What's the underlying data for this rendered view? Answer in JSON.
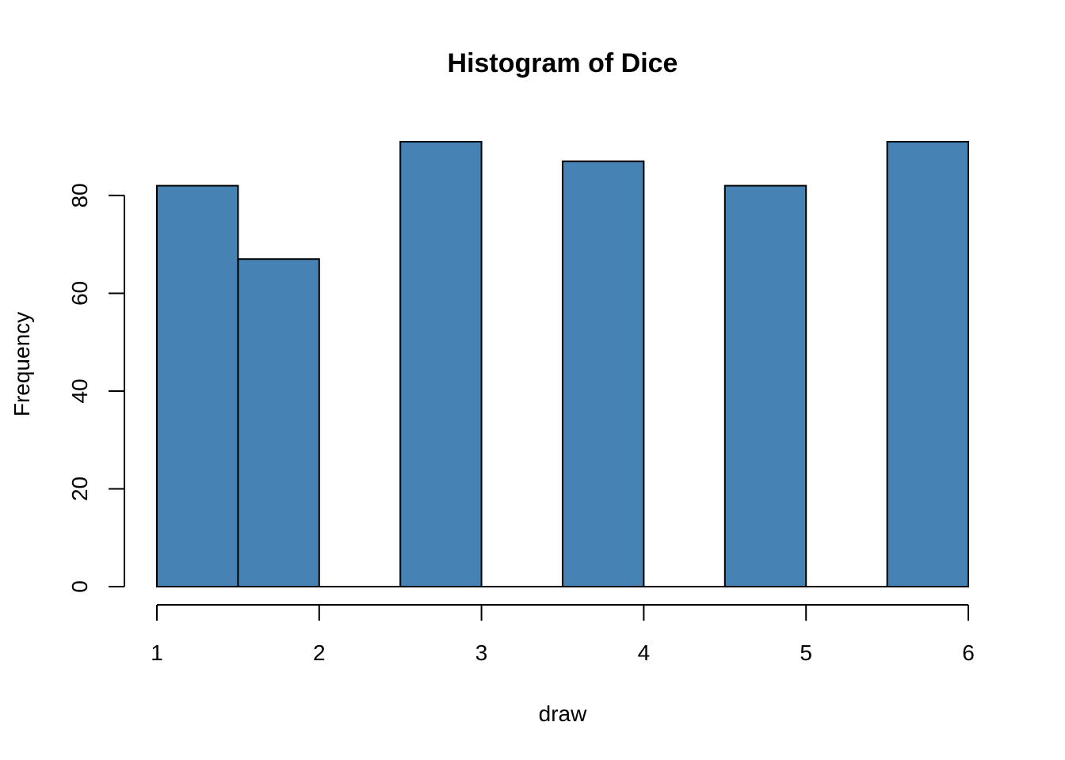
{
  "chart_data": {
    "type": "bar",
    "title": "Histogram of Dice",
    "xlabel": "draw",
    "ylabel": "Frequency",
    "bins": [
      {
        "start": 1.0,
        "end": 1.5,
        "count": 82
      },
      {
        "start": 1.5,
        "end": 2.0,
        "count": 67
      },
      {
        "start": 2.0,
        "end": 2.5,
        "count": 0
      },
      {
        "start": 2.5,
        "end": 3.0,
        "count": 91
      },
      {
        "start": 3.0,
        "end": 3.5,
        "count": 0
      },
      {
        "start": 3.5,
        "end": 4.0,
        "count": 87
      },
      {
        "start": 4.0,
        "end": 4.5,
        "count": 0
      },
      {
        "start": 4.5,
        "end": 5.0,
        "count": 82
      },
      {
        "start": 5.0,
        "end": 5.5,
        "count": 0
      },
      {
        "start": 5.5,
        "end": 6.0,
        "count": 91
      }
    ],
    "xlim": [
      1,
      6
    ],
    "ylim": [
      0,
      91
    ],
    "x_ticks": [
      1,
      2,
      3,
      4,
      5,
      6
    ],
    "y_ticks": [
      0,
      20,
      40,
      60,
      80
    ],
    "bar_color": "#4682b4",
    "grid": false
  }
}
